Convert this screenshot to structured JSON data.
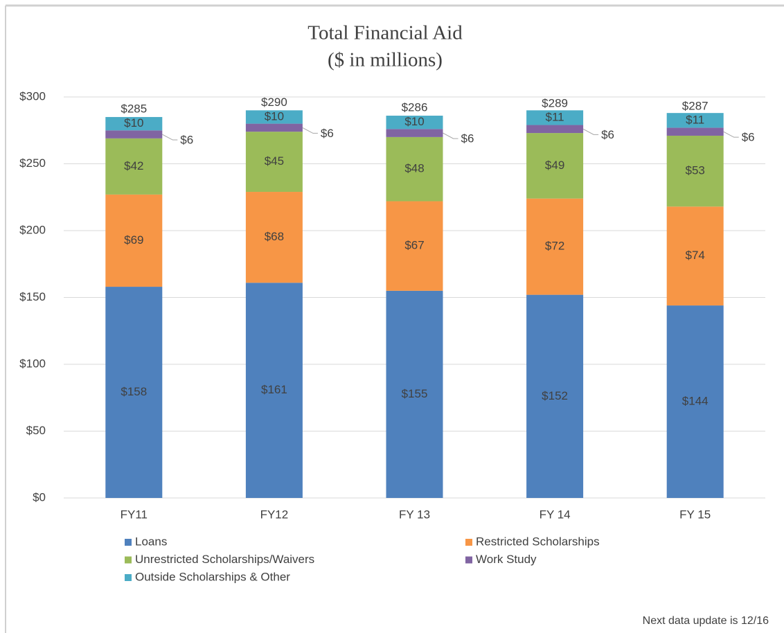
{
  "chart_data": {
    "type": "stacked_bar",
    "title": "Total Financial Aid",
    "subtitle": "($ in millions)",
    "categories": [
      "FY11",
      "FY12",
      "FY 13",
      "FY 14",
      "FY 15"
    ],
    "series": [
      {
        "name": "Loans",
        "color": "#4f81bd",
        "values": [
          158,
          161,
          155,
          152,
          144
        ],
        "value_labels": [
          "$158",
          "$161",
          "$155",
          "$152",
          "$144"
        ]
      },
      {
        "name": "Restricted Scholarships",
        "color": "#f79646",
        "values": [
          69,
          68,
          67,
          72,
          74
        ],
        "value_labels": [
          "$69",
          "$68",
          "$67",
          "$72",
          "$74"
        ]
      },
      {
        "name": "Unrestricted Scholarships/Waivers",
        "color": "#9bbb59",
        "values": [
          42,
          45,
          48,
          49,
          53
        ],
        "value_labels": [
          "$42",
          "$45",
          "$48",
          "$49",
          "$53"
        ]
      },
      {
        "name": "Work Study",
        "color": "#8064a2",
        "values": [
          6,
          6,
          6,
          6,
          6
        ],
        "value_labels": [
          "$6",
          "$6",
          "$6",
          "$6",
          "$6"
        ],
        "label_position": "outside"
      },
      {
        "name": "Outside Scholarships & Other",
        "color": "#4bacc6",
        "values": [
          10,
          10,
          10,
          11,
          11
        ],
        "value_labels": [
          "$10",
          "$10",
          "$10",
          "$11",
          "$11"
        ]
      }
    ],
    "totals": [
      285,
      290,
      286,
      289,
      287
    ],
    "total_labels": [
      "$285",
      "$290",
      "$286",
      "$289",
      "$287"
    ],
    "ylim": [
      0,
      300
    ],
    "yticks": [
      {
        "value": 0,
        "label": "$0"
      },
      {
        "value": 50,
        "label": "$50"
      },
      {
        "value": 100,
        "label": "$100"
      },
      {
        "value": 150,
        "label": "$150"
      },
      {
        "value": 200,
        "label": "$200"
      },
      {
        "value": 250,
        "label": "$250"
      },
      {
        "value": 300,
        "label": "$300"
      }
    ],
    "grid": true,
    "legend": "bottom",
    "footnote": "Next data update is 12/16"
  }
}
